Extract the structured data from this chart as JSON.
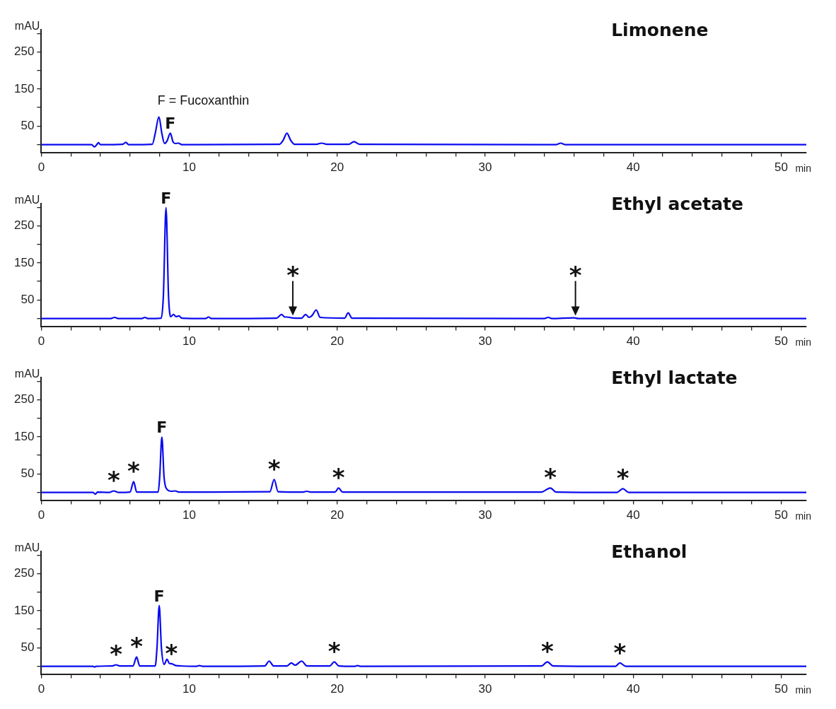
{
  "chart_data": [
    {
      "type": "line",
      "title": "Limonene",
      "xlabel": "min",
      "ylabel": "mAU",
      "xlim": [
        0,
        51.7
      ],
      "ylim": [
        -21,
        310
      ],
      "xticks": [
        0,
        {
          "value": 2,
          "label": null
        },
        {
          "value": 4,
          "label": null
        },
        {
          "value": 6,
          "label": null
        },
        {
          "value": 8,
          "label": null
        },
        10,
        {
          "value": 12,
          "label": null
        },
        {
          "value": 14,
          "label": null
        },
        {
          "value": 16,
          "label": null
        },
        {
          "value": 18,
          "label": null
        },
        20,
        {
          "value": 22,
          "label": null
        },
        {
          "value": 24,
          "label": null
        },
        {
          "value": 26,
          "label": null
        },
        {
          "value": 28,
          "label": null
        },
        30,
        {
          "value": 32,
          "label": null
        },
        {
          "value": 34,
          "label": null
        },
        {
          "value": 36,
          "label": null
        },
        {
          "value": 38,
          "label": null
        },
        40,
        {
          "value": 42,
          "label": null
        },
        {
          "value": 44,
          "label": null
        },
        {
          "value": 46,
          "label": null
        },
        {
          "value": 48,
          "label": null
        },
        50
      ],
      "yticks": [
        {
          "value": 0,
          "label": null
        },
        50,
        {
          "value": 100,
          "label": null
        },
        150,
        {
          "value": 200,
          "label": null
        },
        250,
        {
          "value": 300,
          "label": null
        }
      ],
      "x": [
        0,
        3.4,
        3.6,
        3.75,
        3.87,
        4.0,
        5.5,
        5.72,
        5.9,
        7.5,
        7.7,
        7.95,
        8.15,
        8.33,
        8.5,
        8.72,
        8.9,
        9.05,
        9.26,
        9.5,
        16.1,
        16.35,
        16.6,
        16.85,
        17.1,
        18.6,
        18.94,
        19.3,
        20.8,
        21.13,
        21.5,
        34.8,
        35.1,
        35.4,
        51.7
      ],
      "series": [
        {
          "color": "#0a0af0",
          "values": [
            0,
            0,
            -6,
            0,
            5,
            0,
            1,
            6,
            0,
            1,
            30,
            75,
            30,
            3,
            10,
            31,
            8,
            3,
            4,
            0,
            1,
            12,
            31,
            12,
            1,
            1,
            4,
            1,
            1,
            8,
            1,
            0,
            4,
            0,
            0
          ]
        }
      ],
      "annotations": [
        "F = Fucoxanthin",
        {
          "text": "F",
          "x": 8.72,
          "y": 31
        }
      ]
    },
    {
      "type": "line",
      "title": "Ethyl acetate",
      "xlabel": "min",
      "ylabel": "mAU",
      "xlim": [
        0,
        51.7
      ],
      "ylim": [
        -21,
        310
      ],
      "xticks": [
        0,
        {
          "value": 2,
          "label": null
        },
        {
          "value": 4,
          "label": null
        },
        {
          "value": 6,
          "label": null
        },
        {
          "value": 8,
          "label": null
        },
        10,
        {
          "value": 12,
          "label": null
        },
        {
          "value": 14,
          "label": null
        },
        {
          "value": 16,
          "label": null
        },
        {
          "value": 18,
          "label": null
        },
        20,
        {
          "value": 22,
          "label": null
        },
        {
          "value": 24,
          "label": null
        },
        {
          "value": 26,
          "label": null
        },
        {
          "value": 28,
          "label": null
        },
        30,
        {
          "value": 32,
          "label": null
        },
        {
          "value": 34,
          "label": null
        },
        {
          "value": 36,
          "label": null
        },
        {
          "value": 38,
          "label": null
        },
        40,
        {
          "value": 42,
          "label": null
        },
        {
          "value": 44,
          "label": null
        },
        {
          "value": 46,
          "label": null
        },
        {
          "value": 48,
          "label": null
        },
        50
      ],
      "yticks": [
        {
          "value": 0,
          "label": null
        },
        50,
        {
          "value": 100,
          "label": null
        },
        150,
        {
          "value": 200,
          "label": null
        },
        250,
        {
          "value": 300,
          "label": null
        }
      ],
      "x": [
        0,
        4.7,
        4.95,
        5.2,
        6.8,
        7.0,
        7.2,
        8.1,
        8.25,
        8.43,
        8.6,
        8.75,
        8.94,
        9.1,
        9.3,
        9.5,
        11.1,
        11.3,
        11.5,
        15.9,
        16.24,
        16.45,
        16.6,
        16.9,
        17.6,
        17.86,
        18.1,
        18.3,
        18.58,
        18.85,
        20.5,
        20.74,
        21.0,
        34.0,
        34.26,
        34.5,
        36.0,
        36.3,
        51.7
      ],
      "series": [
        {
          "color": "#0a0af0",
          "values": [
            0,
            0,
            3,
            0,
            0,
            3,
            0,
            1,
            60,
            299,
            60,
            5,
            11,
            5,
            7,
            1,
            0,
            4,
            0,
            1,
            11,
            4,
            4,
            2,
            1,
            11,
            3,
            8,
            23,
            3,
            1,
            15,
            1,
            0,
            3,
            0,
            2,
            0,
            0
          ]
        }
      ],
      "annotations": [
        {
          "text": "F",
          "x": 8.43,
          "y": 299
        },
        {
          "text": "*",
          "x": 17.0,
          "y": 2
        },
        {
          "text": "*",
          "x": 36.1,
          "y": 2
        }
      ]
    },
    {
      "type": "line",
      "title": "Ethyl lactate",
      "xlabel": "min",
      "ylabel": "mAU",
      "xlim": [
        0,
        51.7
      ],
      "ylim": [
        -21,
        310
      ],
      "xticks": [
        0,
        {
          "value": 2,
          "label": null
        },
        {
          "value": 4,
          "label": null
        },
        {
          "value": 6,
          "label": null
        },
        {
          "value": 8,
          "label": null
        },
        10,
        {
          "value": 12,
          "label": null
        },
        {
          "value": 14,
          "label": null
        },
        {
          "value": 16,
          "label": null
        },
        {
          "value": 18,
          "label": null
        },
        20,
        {
          "value": 22,
          "label": null
        },
        {
          "value": 24,
          "label": null
        },
        {
          "value": 26,
          "label": null
        },
        {
          "value": 28,
          "label": null
        },
        30,
        {
          "value": 32,
          "label": null
        },
        {
          "value": 34,
          "label": null
        },
        {
          "value": 36,
          "label": null
        },
        {
          "value": 38,
          "label": null
        },
        40,
        {
          "value": 42,
          "label": null
        },
        {
          "value": 44,
          "label": null
        },
        {
          "value": 46,
          "label": null
        },
        {
          "value": 48,
          "label": null
        },
        50
      ],
      "yticks": [
        {
          "value": 0,
          "label": null
        },
        50,
        {
          "value": 100,
          "label": null
        },
        150,
        {
          "value": 200,
          "label": null
        },
        250,
        {
          "value": 300,
          "label": null
        }
      ],
      "x": [
        0,
        3.5,
        3.65,
        3.8,
        4.6,
        4.9,
        5.2,
        6.0,
        6.24,
        6.45,
        7.9,
        8.0,
        8.15,
        8.3,
        8.5,
        8.8,
        9.05,
        9.3,
        15.45,
        15.74,
        16.0,
        17.7,
        17.93,
        18.2,
        19.85,
        20.09,
        20.35,
        33.8,
        34.4,
        34.8,
        38.9,
        39.3,
        39.7,
        51.7
      ],
      "series": [
        {
          "color": "#0a0af0",
          "values": [
            0,
            0,
            -5,
            1,
            0,
            4,
            0,
            1,
            29,
            1,
            1,
            40,
            149,
            40,
            8,
            3,
            4,
            1,
            2,
            35,
            2,
            1,
            3,
            1,
            1,
            12,
            1,
            1,
            12,
            1,
            0,
            10,
            0,
            0
          ]
        }
      ],
      "annotations": [
        {
          "text": "F",
          "x": 8.15,
          "y": 149
        },
        {
          "text": "*",
          "x": 4.9,
          "y": 4
        },
        {
          "text": "*",
          "x": 6.24,
          "y": 29
        },
        {
          "text": "*",
          "x": 15.74,
          "y": 35
        },
        {
          "text": "*",
          "x": 20.09,
          "y": 12
        },
        {
          "text": "*",
          "x": 34.4,
          "y": 12
        },
        {
          "text": "*",
          "x": 39.3,
          "y": 10
        }
      ]
    },
    {
      "type": "line",
      "title": "Ethanol",
      "xlabel": "min",
      "ylabel": "mAU",
      "xlim": [
        0,
        51.7
      ],
      "ylim": [
        -21,
        310
      ],
      "xticks": [
        0,
        {
          "value": 2,
          "label": null
        },
        {
          "value": 4,
          "label": null
        },
        {
          "value": 6,
          "label": null
        },
        {
          "value": 8,
          "label": null
        },
        10,
        {
          "value": 12,
          "label": null
        },
        {
          "value": 14,
          "label": null
        },
        {
          "value": 16,
          "label": null
        },
        {
          "value": 18,
          "label": null
        },
        20,
        {
          "value": 22,
          "label": null
        },
        {
          "value": 24,
          "label": null
        },
        {
          "value": 26,
          "label": null
        },
        {
          "value": 28,
          "label": null
        },
        30,
        {
          "value": 32,
          "label": null
        },
        {
          "value": 34,
          "label": null
        },
        {
          "value": 36,
          "label": null
        },
        {
          "value": 38,
          "label": null
        },
        40,
        {
          "value": 42,
          "label": null
        },
        {
          "value": 44,
          "label": null
        },
        {
          "value": 46,
          "label": null
        },
        {
          "value": 48,
          "label": null
        },
        50
      ],
      "yticks": [
        {
          "value": 0,
          "label": null
        },
        50,
        {
          "value": 100,
          "label": null
        },
        150,
        {
          "value": 200,
          "label": null
        },
        250,
        {
          "value": 300,
          "label": null
        }
      ],
      "x": [
        0,
        3.5,
        3.6,
        3.7,
        4.8,
        5.05,
        5.3,
        6.2,
        6.44,
        6.65,
        7.7,
        7.82,
        7.97,
        8.12,
        8.3,
        8.5,
        8.65,
        8.8,
        9.1,
        10.5,
        10.67,
        10.9,
        15.1,
        15.4,
        15.7,
        16.6,
        16.9,
        17.15,
        17.6,
        17.95,
        19.5,
        19.8,
        20.1,
        21.2,
        21.37,
        21.55,
        33.8,
        34.2,
        34.6,
        38.8,
        39.1,
        39.5,
        51.7
      ],
      "series": [
        {
          "color": "#0a0af0",
          "values": [
            0,
            0,
            -2,
            0,
            1,
            4,
            1,
            1,
            25,
            1,
            1,
            50,
            164,
            50,
            5,
            19,
            8,
            7,
            2,
            0,
            2,
            0,
            1,
            14,
            1,
            1,
            9,
            3,
            14,
            1,
            1,
            12,
            1,
            0,
            2,
            0,
            1,
            12,
            1,
            0,
            9,
            0,
            0
          ]
        }
      ],
      "annotations": [
        {
          "text": "F",
          "x": 7.97,
          "y": 164
        },
        {
          "text": "*",
          "x": 5.05,
          "y": 4
        },
        {
          "text": "*",
          "x": 6.44,
          "y": 25
        },
        {
          "text": "*",
          "x": 8.8,
          "y": 7
        },
        {
          "text": "*",
          "x": 19.8,
          "y": 12
        },
        {
          "text": "*",
          "x": 34.2,
          "y": 12
        },
        {
          "text": "*",
          "x": 39.1,
          "y": 9
        }
      ]
    }
  ]
}
